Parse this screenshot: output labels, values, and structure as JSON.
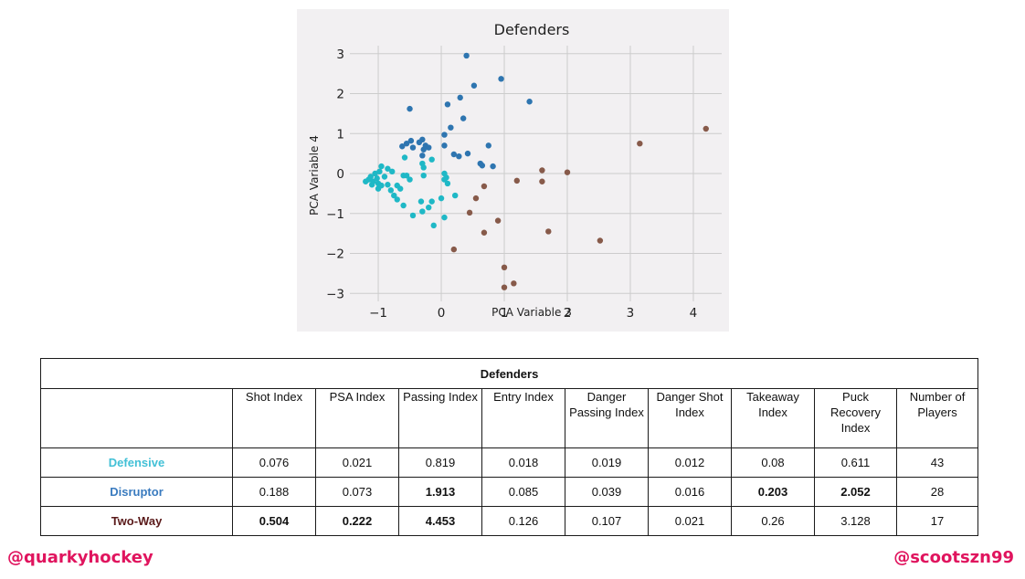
{
  "chart_data": {
    "type": "scatter",
    "title": "Defenders",
    "xlabel": "PCA Variable 3",
    "ylabel": "PCA Variable 4",
    "xlim": [
      -1.45,
      4.45
    ],
    "ylim": [
      -3.2,
      3.2
    ],
    "xticks": [
      -1,
      0,
      1,
      2,
      3,
      4
    ],
    "yticks": [
      -3,
      -2,
      -1,
      0,
      1,
      2,
      3
    ],
    "xtick_labels": [
      "−1",
      "0",
      "1",
      "2",
      "3",
      "4"
    ],
    "ytick_labels": [
      "−3",
      "−2",
      "−1",
      "0",
      "1",
      "2",
      "3"
    ],
    "grid": true,
    "series": [
      {
        "color": "#2e75b0",
        "points": [
          [
            0.4,
            2.95
          ],
          [
            0.95,
            2.37
          ],
          [
            0.52,
            2.2
          ],
          [
            1.4,
            1.8
          ],
          [
            0.3,
            1.9
          ],
          [
            0.1,
            1.73
          ],
          [
            -0.5,
            1.62
          ],
          [
            0.35,
            1.38
          ],
          [
            0.15,
            1.15
          ],
          [
            0.05,
            0.97
          ],
          [
            -0.3,
            0.85
          ],
          [
            -0.48,
            0.82
          ],
          [
            -0.35,
            0.78
          ],
          [
            -0.55,
            0.75
          ],
          [
            -0.62,
            0.68
          ],
          [
            -0.25,
            0.7
          ],
          [
            0.05,
            0.7
          ],
          [
            0.75,
            0.7
          ],
          [
            -0.28,
            0.6
          ],
          [
            0.2,
            0.48
          ],
          [
            0.28,
            0.43
          ],
          [
            0.42,
            0.5
          ],
          [
            -0.3,
            0.45
          ],
          [
            0.62,
            0.25
          ],
          [
            0.65,
            0.2
          ],
          [
            0.82,
            0.18
          ],
          [
            -0.2,
            0.65
          ],
          [
            -0.45,
            0.65
          ]
        ]
      },
      {
        "color": "#1fb8c6",
        "points": [
          [
            -0.58,
            0.4
          ],
          [
            -0.3,
            0.25
          ],
          [
            -0.28,
            0.15
          ],
          [
            -0.28,
            -0.05
          ],
          [
            -0.15,
            0.35
          ],
          [
            0.05,
            0.0
          ],
          [
            0.05,
            -0.15
          ],
          [
            0.1,
            -0.25
          ],
          [
            0.22,
            -0.55
          ],
          [
            -1.15,
            -0.15
          ],
          [
            -1.05,
            0.0
          ],
          [
            -0.98,
            0.05
          ],
          [
            -0.95,
            0.18
          ],
          [
            -0.85,
            0.12
          ],
          [
            -0.78,
            0.05
          ],
          [
            -0.6,
            -0.05
          ],
          [
            -0.55,
            -0.05
          ],
          [
            -1.08,
            -0.2
          ],
          [
            -1.2,
            -0.2
          ],
          [
            -1.0,
            -0.25
          ],
          [
            -0.95,
            -0.3
          ],
          [
            -0.85,
            -0.28
          ],
          [
            -0.7,
            -0.3
          ],
          [
            -0.65,
            -0.38
          ],
          [
            -1.0,
            -0.38
          ],
          [
            -0.75,
            -0.55
          ],
          [
            -0.7,
            -0.65
          ],
          [
            -0.6,
            -0.8
          ],
          [
            -0.45,
            -1.05
          ],
          [
            -0.3,
            -0.95
          ],
          [
            -0.32,
            -0.7
          ],
          [
            -0.15,
            -0.7
          ],
          [
            -0.12,
            -1.3
          ],
          [
            0.05,
            -1.1
          ],
          [
            -1.12,
            -0.08
          ],
          [
            -1.02,
            -0.12
          ],
          [
            -0.9,
            -0.08
          ],
          [
            -1.1,
            -0.28
          ],
          [
            -0.8,
            -0.42
          ],
          [
            0.08,
            -0.1
          ],
          [
            -0.2,
            -0.85
          ],
          [
            0.0,
            -0.62
          ],
          [
            -0.5,
            -0.15
          ]
        ]
      },
      {
        "color": "#875a4a",
        "points": [
          [
            4.2,
            1.12
          ],
          [
            3.15,
            0.75
          ],
          [
            1.6,
            0.08
          ],
          [
            2.0,
            0.03
          ],
          [
            1.2,
            -0.18
          ],
          [
            1.6,
            -0.2
          ],
          [
            0.68,
            -0.32
          ],
          [
            0.55,
            -0.62
          ],
          [
            0.45,
            -0.98
          ],
          [
            0.9,
            -1.18
          ],
          [
            0.68,
            -1.48
          ],
          [
            1.7,
            -1.45
          ],
          [
            2.52,
            -1.68
          ],
          [
            0.2,
            -1.9
          ],
          [
            1.0,
            -2.35
          ],
          [
            1.15,
            -2.75
          ],
          [
            1.0,
            -2.85
          ]
        ]
      }
    ]
  },
  "table": {
    "title": "Defenders",
    "columns": [
      "Shot Index",
      "PSA Index",
      "Passing Index",
      "Entry Index",
      "Danger Passing Index",
      "Danger Shot Index",
      "Takeaway Index",
      "Puck Recovery Index",
      "Number of Players"
    ],
    "rows": [
      {
        "label": "Defensive",
        "label_color": "#42c0d6",
        "values": [
          "0.076",
          "0.021",
          "0.819",
          "0.018",
          "0.019",
          "0.012",
          "0.08",
          "0.611",
          "43"
        ],
        "bold": []
      },
      {
        "label": "Disruptor",
        "label_color": "#3a7bbf",
        "values": [
          "0.188",
          "0.073",
          "1.913",
          "0.085",
          "0.039",
          "0.016",
          "0.203",
          "2.052",
          "28"
        ],
        "bold": [
          2,
          6,
          7
        ]
      },
      {
        "label": "Two-Way",
        "label_color": "#5a1a1a",
        "values": [
          "0.504",
          "0.222",
          "4.453",
          "0.126",
          "0.107",
          "0.021",
          "0.26",
          "3.128",
          "17"
        ],
        "bold": [
          0,
          1,
          2
        ]
      }
    ]
  },
  "footer": {
    "left_handle": "@quarkyhockey",
    "right_handle": "@scootszn99",
    "handle_color": "#e0145e"
  }
}
